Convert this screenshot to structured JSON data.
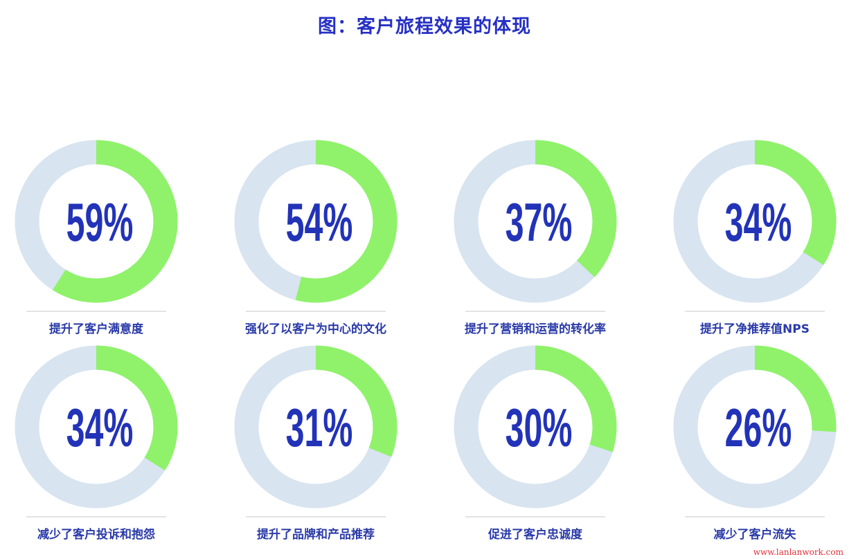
{
  "chart_data": {
    "type": "pie",
    "variant": "donut",
    "title": "图：客户旅程效果的体现",
    "unit": "%",
    "categories": [
      "提升了客户满意度",
      "强化了以客户为中心的文化",
      "提升了营销和运营的转化率",
      "提升了净推荐值NPS",
      "减少了客户投诉和抱怨",
      "提升了品牌和产品推荐",
      "促进了客户忠诚度",
      "减少了客户流失"
    ],
    "values": [
      59,
      54,
      37,
      34,
      34,
      31,
      30,
      26
    ],
    "value_labels": [
      "59%",
      "54%",
      "37%",
      "34%",
      "34%",
      "31%",
      "30%",
      "26%"
    ],
    "colors": {
      "filled": "#8ff26a",
      "remaining": "#d8e4f0",
      "value_text": "#2233b8",
      "label_text": "#2a3aa8",
      "divider": "#e3e3e3"
    }
  },
  "watermark": "www.lanlanwork.com"
}
